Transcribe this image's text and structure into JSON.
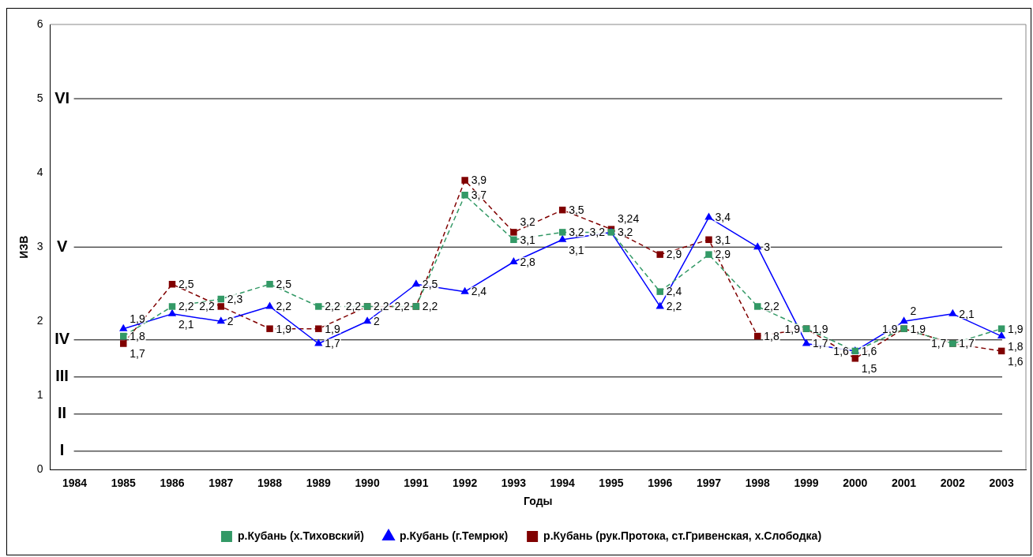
{
  "chart_data": {
    "type": "line",
    "xlabel": "Годы",
    "ylabel": "ИЗВ",
    "categories": [
      "1984",
      "1985",
      "1986",
      "1987",
      "1988",
      "1989",
      "1990",
      "1991",
      "1992",
      "1993",
      "1994",
      "1995",
      "1996",
      "1997",
      "1998",
      "1999",
      "2000",
      "2001",
      "2002",
      "2003"
    ],
    "ylim": [
      0,
      6
    ],
    "yticks": [
      0,
      1,
      2,
      3,
      4,
      5,
      6
    ],
    "grid": false,
    "legend": "bottom",
    "series": [
      {
        "name": "р.Кубань (х.Тиховский)",
        "color": "#339966",
        "marker": "square",
        "line_style": "dashed",
        "values": [
          null,
          1.8,
          2.2,
          2.3,
          2.5,
          2.2,
          2.2,
          2.2,
          3.7,
          3.1,
          3.2,
          3.2,
          2.4,
          2.9,
          2.2,
          1.9,
          1.6,
          1.9,
          1.7,
          1.9
        ],
        "value_labels": [
          null,
          "1,8",
          "2,2",
          "2,3",
          "2,5",
          "2,2",
          "2,2",
          "2,2",
          "3,7",
          "3,1",
          "3,2",
          "3,2",
          "2,4",
          "2,9",
          "2,2",
          "1,9",
          "1,6",
          "1,9",
          "1,7",
          "1,9"
        ]
      },
      {
        "name": "р.Кубань (г.Темрюк)",
        "color": "#0000ff",
        "marker": "triangle",
        "line_style": "solid",
        "values": [
          null,
          1.9,
          2.1,
          2,
          2.2,
          1.7,
          2,
          2.5,
          2.4,
          2.8,
          3.1,
          3.2,
          2.2,
          3.4,
          3,
          1.7,
          1.6,
          2,
          2.1,
          1.8
        ],
        "value_labels": [
          null,
          "1,9",
          "2,1",
          "2",
          "2,2",
          "1,7",
          "2",
          "2,5",
          "2,4",
          "2,8",
          "3,1",
          "3,2",
          "2,2",
          "3,4",
          "3",
          "1,7",
          "1,6",
          "2",
          "2,1",
          "1,8"
        ]
      },
      {
        "name": "р.Кубань (рук.Протока, ст.Гривенская, х.Слободка)",
        "color": "#800000",
        "marker": "square",
        "line_style": "dashed",
        "values": [
          null,
          1.7,
          2.5,
          2.2,
          1.9,
          1.9,
          2.2,
          2.2,
          3.9,
          3.2,
          3.5,
          3.24,
          2.9,
          3.1,
          1.8,
          1.9,
          1.5,
          1.9,
          1.7,
          1.6
        ],
        "value_labels": [
          null,
          "1,7",
          "2,5",
          "2,2",
          "1,9",
          "1,9",
          "2,2",
          "2,2",
          "3,9",
          "3,2",
          "3,5",
          "3,24",
          "2,9",
          "3,1",
          "1,8",
          "1,9",
          "1,5",
          "1,9",
          "1,7",
          "1,6"
        ]
      }
    ],
    "ref_lines": [
      {
        "axis": "y",
        "value": 5,
        "label": "VI",
        "color": "#000000"
      },
      {
        "axis": "y",
        "value": 3,
        "label": "V",
        "color": "#000000"
      },
      {
        "axis": "y",
        "value": 1.75,
        "label": "IV",
        "color": "#000000"
      },
      {
        "axis": "y",
        "value": 1.25,
        "label": "III",
        "color": "#000000"
      },
      {
        "axis": "y",
        "value": 0.75,
        "label": "II",
        "color": "#000000"
      },
      {
        "axis": "y",
        "value": 0.25,
        "label": "I",
        "color": "#000000"
      }
    ]
  }
}
